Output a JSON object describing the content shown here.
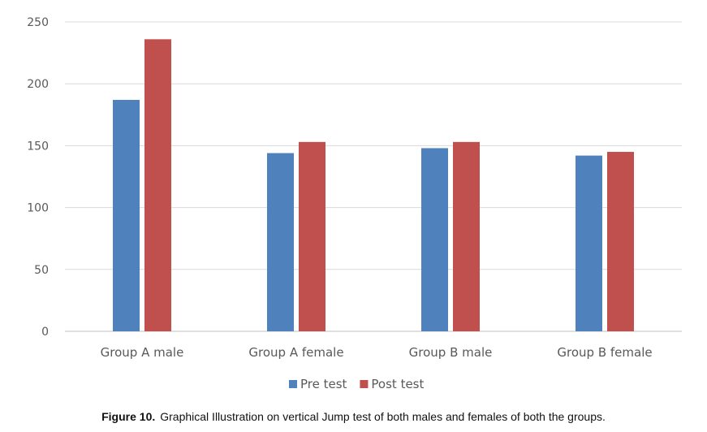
{
  "chart_data": {
    "type": "bar",
    "categories": [
      "Group A male",
      "Group A female",
      "Group B male",
      "Group B female"
    ],
    "series": [
      {
        "name": "Pre test",
        "color": "#4f81bd",
        "values": [
          187,
          144,
          148,
          142
        ]
      },
      {
        "name": "Post test",
        "color": "#c0504d",
        "values": [
          236,
          153,
          153,
          145
        ]
      }
    ],
    "ylim": [
      0,
      250
    ],
    "yticks": [
      0,
      50,
      100,
      150,
      200,
      250
    ],
    "grid": true,
    "legend_position": "bottom"
  },
  "caption": {
    "number": "Figure 10.",
    "text": "Graphical Illustration on vertical Jump test of both males and females of both the groups."
  }
}
